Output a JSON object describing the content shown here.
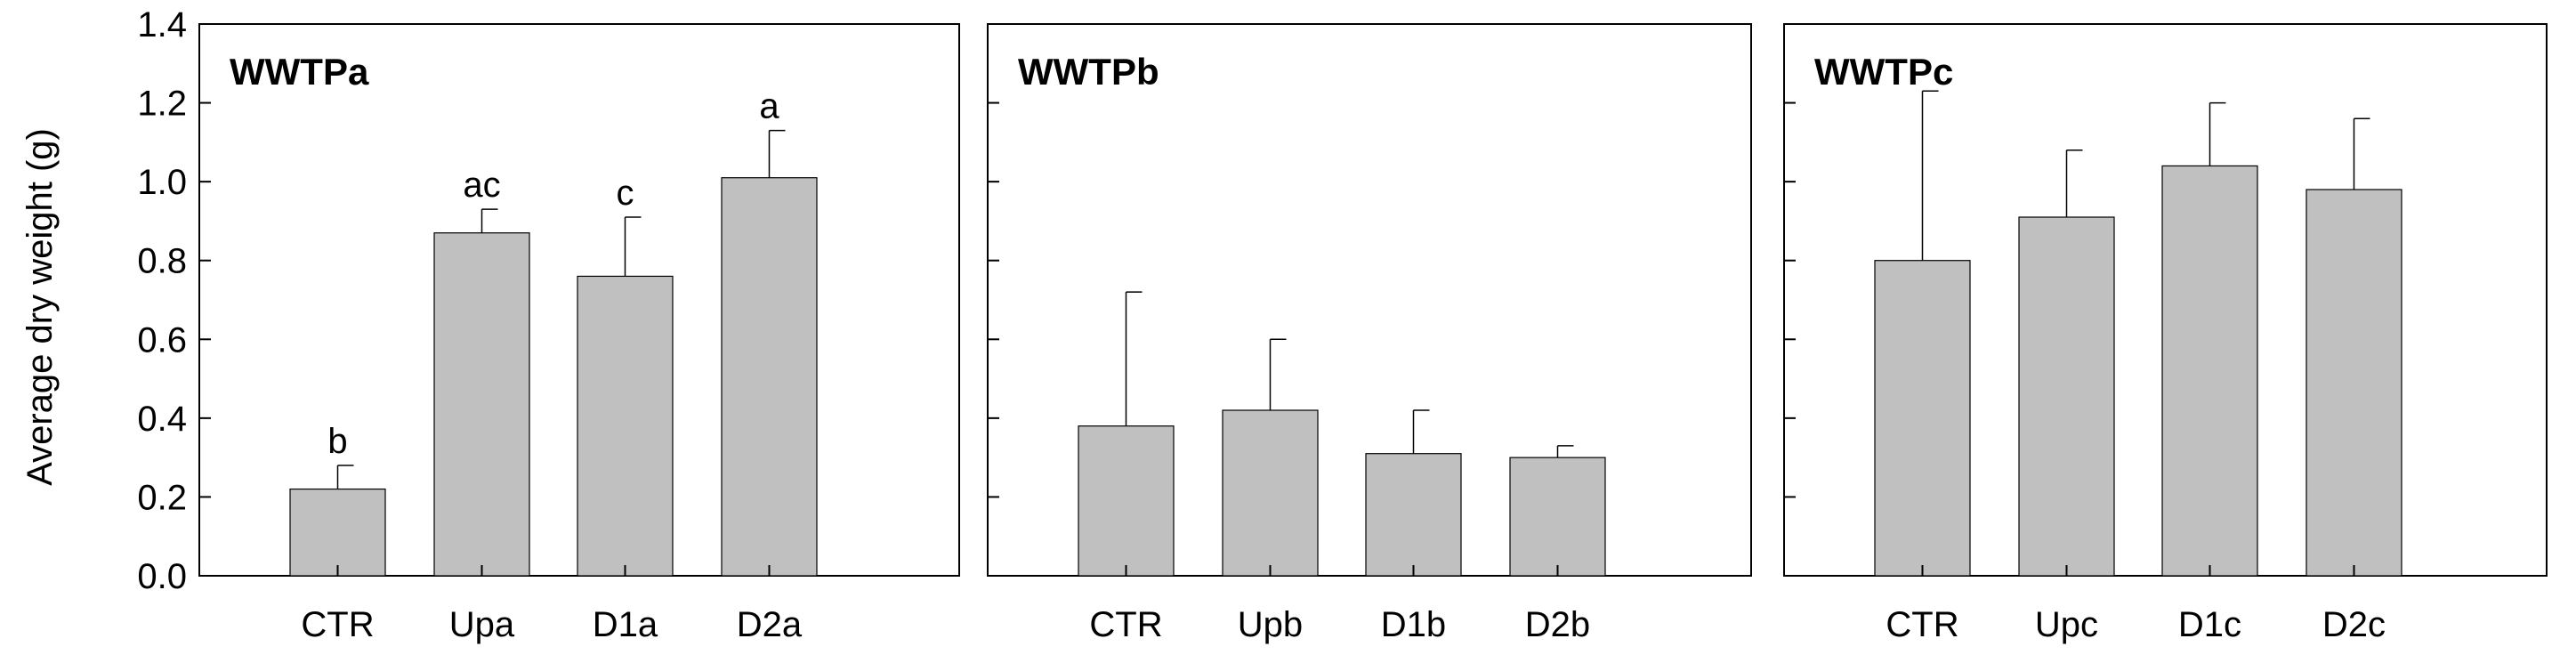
{
  "chart_data": {
    "type": "bar",
    "ylabel": "Average dry weight (g)",
    "ylim": [
      0,
      1.4
    ],
    "yticks": [
      "0.0",
      "0.2",
      "0.4",
      "0.6",
      "0.8",
      "1.0",
      "1.2",
      "1.4"
    ],
    "bar_color": "#c0c0c0",
    "panels": [
      {
        "title": "WWTPa",
        "categories": [
          "CTR",
          "Upa",
          "D1a",
          "D2a"
        ],
        "values": [
          0.22,
          0.87,
          0.76,
          1.01
        ],
        "errors": [
          0.06,
          0.06,
          0.15,
          0.12
        ],
        "labels": [
          "b",
          "ac",
          "c",
          "a"
        ]
      },
      {
        "title": "WWTPb",
        "categories": [
          "CTR",
          "Upb",
          "D1b",
          "D2b"
        ],
        "values": [
          0.38,
          0.42,
          0.31,
          0.3
        ],
        "errors": [
          0.34,
          0.18,
          0.11,
          0.03
        ],
        "labels": [
          "",
          "",
          "",
          ""
        ]
      },
      {
        "title": "WWTPc",
        "categories": [
          "CTR",
          "Upc",
          "D1c",
          "D2c"
        ],
        "values": [
          0.8,
          0.91,
          1.04,
          0.98
        ],
        "errors": [
          0.43,
          0.17,
          0.16,
          0.18
        ],
        "labels": [
          "",
          "",
          "",
          ""
        ]
      }
    ]
  }
}
